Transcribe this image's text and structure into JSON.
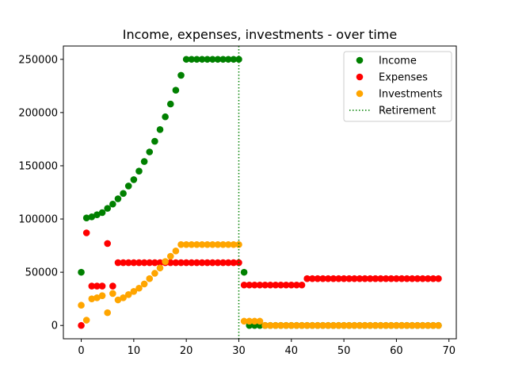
{
  "chart_data": {
    "type": "scatter",
    "title": "Income, expenses, investments - over time",
    "xlabel": "",
    "ylabel": "",
    "xlim": [
      -3.4,
      71.4
    ],
    "ylim": [
      -12500,
      262500
    ],
    "xticks": [
      0,
      10,
      20,
      30,
      40,
      50,
      60,
      70
    ],
    "yticks": [
      0,
      50000,
      100000,
      150000,
      200000,
      250000
    ],
    "grid": false,
    "legend_position": "top-right",
    "x": [
      0,
      1,
      2,
      3,
      4,
      5,
      6,
      7,
      8,
      9,
      10,
      11,
      12,
      13,
      14,
      15,
      16,
      17,
      18,
      19,
      20,
      21,
      22,
      23,
      24,
      25,
      26,
      27,
      28,
      29,
      30,
      31,
      32,
      33,
      34,
      35,
      36,
      37,
      38,
      39,
      40,
      41,
      42,
      43,
      44,
      45,
      46,
      47,
      48,
      49,
      50,
      51,
      52,
      53,
      54,
      55,
      56,
      57,
      58,
      59,
      60,
      61,
      62,
      63,
      64,
      65,
      66,
      67,
      68
    ],
    "series": [
      {
        "name": "Income",
        "color": "#008000",
        "values": [
          50000,
          101000,
          102000,
          104000,
          106000,
          110000,
          114000,
          119000,
          124000,
          131000,
          137000,
          145000,
          154000,
          163000,
          173000,
          184000,
          196000,
          208000,
          221000,
          235000,
          250000,
          250000,
          250000,
          250000,
          250000,
          250000,
          250000,
          250000,
          250000,
          250000,
          250000,
          50000,
          0,
          0,
          0,
          0,
          0,
          0,
          0,
          0,
          0,
          0,
          0,
          0,
          0,
          0,
          0,
          0,
          0,
          0,
          0,
          0,
          0,
          0,
          0,
          0,
          0,
          0,
          0,
          0,
          0,
          0,
          0,
          0,
          0,
          0,
          0,
          0,
          0
        ]
      },
      {
        "name": "Expenses",
        "color": "#ff0000",
        "values": [
          0,
          87000,
          37000,
          37000,
          37000,
          77000,
          37000,
          59000,
          59000,
          59000,
          59000,
          59000,
          59000,
          59000,
          59000,
          59000,
          59000,
          59000,
          59000,
          59000,
          59000,
          59000,
          59000,
          59000,
          59000,
          59000,
          59000,
          59000,
          59000,
          59000,
          59000,
          38000,
          38000,
          38000,
          38000,
          38000,
          38000,
          38000,
          38000,
          38000,
          38000,
          38000,
          38000,
          44000,
          44000,
          44000,
          44000,
          44000,
          44000,
          44000,
          44000,
          44000,
          44000,
          44000,
          44000,
          44000,
          44000,
          44000,
          44000,
          44000,
          44000,
          44000,
          44000,
          44000,
          44000,
          44000,
          44000,
          44000,
          44000
        ]
      },
      {
        "name": "Investments",
        "color": "#ffa500",
        "values": [
          19000,
          5000,
          25000,
          26000,
          28000,
          12000,
          30000,
          24000,
          26000,
          29000,
          32000,
          35000,
          39000,
          44000,
          49000,
          54000,
          60000,
          65000,
          70000,
          76000,
          76000,
          76000,
          76000,
          76000,
          76000,
          76000,
          76000,
          76000,
          76000,
          76000,
          76000,
          4000,
          4000,
          4000,
          4000,
          0,
          0,
          0,
          0,
          0,
          0,
          0,
          0,
          0,
          0,
          0,
          0,
          0,
          0,
          0,
          0,
          0,
          0,
          0,
          0,
          0,
          0,
          0,
          0,
          0,
          0,
          0,
          0,
          0,
          0,
          0,
          0,
          0,
          0
        ]
      }
    ],
    "vlines": [
      {
        "name": "Retirement",
        "x": 30,
        "color": "#008000",
        "style": "dotted"
      }
    ]
  }
}
